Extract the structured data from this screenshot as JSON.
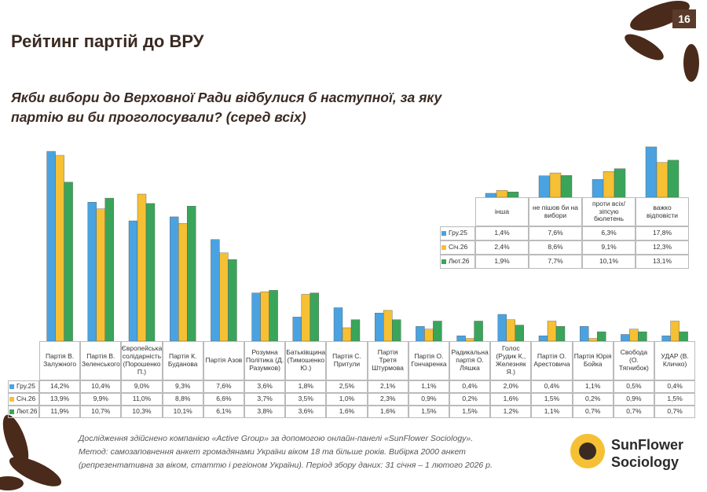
{
  "page_number": "16",
  "title": "Рейтинг партій до ВРУ",
  "subtitle": "Якби вибори до Верховної Ради відбулися б наступної, за яку партію ви би проголосували? (серед всіх)",
  "chart_data": [
    {
      "type": "bar",
      "categories": [
        "Партія В. Залужного",
        "Партія В. Зеленського",
        "Європейська солідарність (Порошенко П.)",
        "Партія К. Буданова",
        "Партія Азов",
        "Розумна Політика (Д. Разумков)",
        "Батьківщина (Тимошенко Ю.)",
        "Партія С. Притули",
        "Партія Третя Штурмова",
        "Партія О. Гончаренка",
        "Радикальна партія О. Ляшка",
        "Голос (Рудик К., Железняк Я.)",
        "Партія О. Арестовича",
        "Партія Юрія Бойка",
        "Свобода (О. Тягнибок)",
        "УДАР (В. Кличко)"
      ],
      "series": [
        {
          "name": "Гру.25",
          "color": "#4aa3e0",
          "values": [
            14.2,
            10.4,
            9.0,
            9.3,
            7.6,
            3.6,
            1.8,
            2.5,
            2.1,
            1.1,
            0.4,
            2.0,
            0.4,
            1.1,
            0.5,
            0.4
          ],
          "value_labels": [
            "14,2%",
            "10,4%",
            "9,0%",
            "9,3%",
            "7,6%",
            "3,6%",
            "1,8%",
            "2,5%",
            "2,1%",
            "1,1%",
            "0,4%",
            "2,0%",
            "0,4%",
            "1,1%",
            "0,5%",
            "0,4%"
          ]
        },
        {
          "name": "Січ.26",
          "color": "#f5c033",
          "values": [
            13.9,
            9.9,
            11.0,
            8.8,
            6.6,
            3.7,
            3.5,
            1.0,
            2.3,
            0.9,
            0.2,
            1.6,
            1.5,
            0.2,
            0.9,
            1.5
          ],
          "value_labels": [
            "13,9%",
            "9,9%",
            "11,0%",
            "8,8%",
            "6,6%",
            "3,7%",
            "3,5%",
            "1,0%",
            "2,3%",
            "0,9%",
            "0,2%",
            "1,6%",
            "1,5%",
            "0,2%",
            "0,9%",
            "1,5%"
          ]
        },
        {
          "name": "Лют.26",
          "color": "#3aa55a",
          "values": [
            11.9,
            10.7,
            10.3,
            10.1,
            6.1,
            3.8,
            3.6,
            1.6,
            1.6,
            1.5,
            1.5,
            1.2,
            1.1,
            0.7,
            0.7,
            0.7
          ],
          "value_labels": [
            "11,9%",
            "10,7%",
            "10,3%",
            "10,1%",
            "6,1%",
            "3,8%",
            "3,6%",
            "1,6%",
            "1,6%",
            "1,5%",
            "1,5%",
            "1,2%",
            "1,1%",
            "0,7%",
            "0,7%",
            "0,7%"
          ]
        }
      ]
    },
    {
      "type": "bar",
      "categories": [
        "інша",
        "не пішов би на вибори",
        "проти всіх/зіпсую бюлетень",
        "важко відповісти"
      ],
      "series": [
        {
          "name": "Гру.25",
          "color": "#4aa3e0",
          "values": [
            1.4,
            7.6,
            6.3,
            17.8
          ],
          "value_labels": [
            "1,4%",
            "7,6%",
            "6,3%",
            "17,8%"
          ]
        },
        {
          "name": "Січ.26",
          "color": "#f5c033",
          "values": [
            2.4,
            8.6,
            9.1,
            12.3
          ],
          "value_labels": [
            "2,4%",
            "8,6%",
            "9,1%",
            "12,3%"
          ]
        },
        {
          "name": "Лют.26",
          "color": "#3aa55a",
          "values": [
            1.9,
            7.7,
            10.1,
            13.1
          ],
          "value_labels": [
            "1,9%",
            "7,7%",
            "10,1%",
            "13,1%"
          ]
        }
      ]
    }
  ],
  "footer": [
    "Дослідження здійснено компанією «Active Group» за допомогою онлайн-панелі «SunFlower Sociology».",
    "Метод: самозаповнення анкет громадянами України віком 18 та більше років. Вибірка 2000 анкет",
    "(репрезентативна за віком, статтю і регіоном України). Період збору даних: 31 січня – 1 лютого 2026 р."
  ],
  "logo": [
    "SunFlower",
    "Sociology"
  ]
}
